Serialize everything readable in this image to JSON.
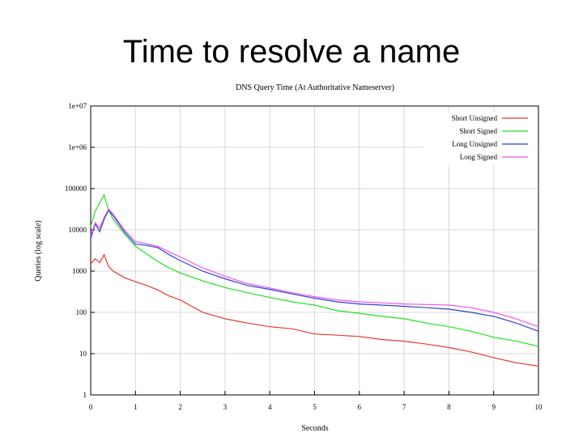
{
  "slide": {
    "title": "Time to resolve a name"
  },
  "chart_data": {
    "type": "line",
    "title": "DNS Query Time (At Authoritative Nameserver)",
    "xlabel": "Seconds",
    "ylabel": "Queries (log scale)",
    "xlim": [
      0,
      10
    ],
    "ylim": [
      1,
      10000000
    ],
    "yscale": "log",
    "grid": true,
    "legend_position": "top-right",
    "x_ticks": [
      0,
      1,
      2,
      3,
      4,
      5,
      6,
      7,
      8,
      9,
      10
    ],
    "y_ticks": [
      {
        "value": 1,
        "label": "1"
      },
      {
        "value": 10,
        "label": "10"
      },
      {
        "value": 100,
        "label": "100"
      },
      {
        "value": 1000,
        "label": "1000"
      },
      {
        "value": 10000,
        "label": "10000"
      },
      {
        "value": 100000,
        "label": "100000"
      },
      {
        "value": 1000000,
        "label": "1e+06"
      },
      {
        "value": 10000000,
        "label": "1e+07"
      }
    ],
    "x": [
      0,
      0.1,
      0.2,
      0.3,
      0.4,
      0.5,
      0.75,
      1.0,
      1.25,
      1.5,
      1.75,
      2.0,
      2.5,
      3.0,
      3.5,
      4.0,
      4.5,
      5.0,
      5.5,
      6.0,
      6.5,
      7.0,
      7.5,
      8.0,
      8.5,
      9.0,
      9.5,
      10.0
    ],
    "series": [
      {
        "name": "Short Unsigned",
        "color": "#e8392c",
        "values": [
          1500,
          2000,
          1600,
          2500,
          1300,
          1000,
          700,
          550,
          450,
          350,
          250,
          200,
          100,
          70,
          55,
          45,
          40,
          30,
          28,
          26,
          22,
          20,
          17,
          14,
          11,
          8,
          6,
          5
        ]
      },
      {
        "name": "Short Signed",
        "color": "#20e020",
        "values": [
          12000,
          28000,
          45000,
          70000,
          30000,
          18000,
          8000,
          4000,
          2600,
          1700,
          1200,
          900,
          580,
          400,
          300,
          230,
          180,
          150,
          110,
          95,
          80,
          70,
          55,
          45,
          35,
          25,
          20,
          15
        ]
      },
      {
        "name": "Long Unsigned",
        "color": "#3040d0",
        "values": [
          6000,
          14000,
          9000,
          18000,
          30000,
          22000,
          9000,
          4500,
          4200,
          3700,
          2500,
          1800,
          1000,
          650,
          450,
          360,
          280,
          220,
          180,
          160,
          150,
          140,
          130,
          120,
          100,
          80,
          55,
          35
        ]
      },
      {
        "name": "Long Signed",
        "color": "#ee55ee",
        "values": [
          7000,
          15000,
          11000,
          20000,
          32000,
          24000,
          10000,
          5200,
          4600,
          4000,
          2900,
          2200,
          1200,
          750,
          500,
          390,
          300,
          240,
          200,
          180,
          170,
          160,
          155,
          150,
          130,
          100,
          70,
          45
        ]
      }
    ]
  }
}
